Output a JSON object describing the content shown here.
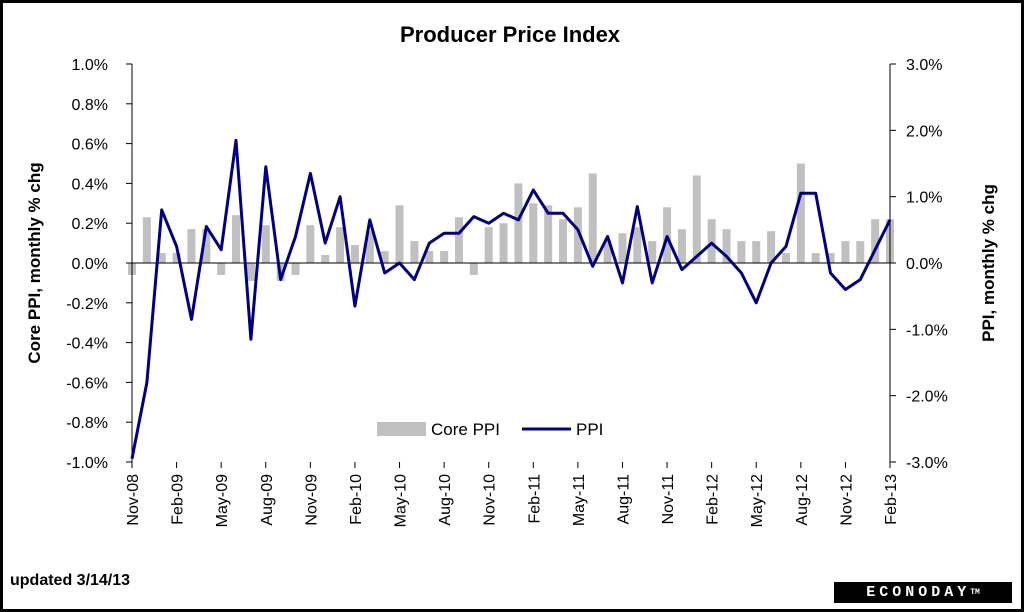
{
  "chart_data": {
    "type": "bar",
    "title": "Producer Price Index",
    "ylabel_left": "Core PPI, monthly % chg",
    "ylabel_right": "PPI, monthly % chg",
    "ylim_left": [
      -1.0,
      1.0
    ],
    "ylim_right": [
      -3.0,
      3.0
    ],
    "left_ticks": [
      "1.0%",
      "0.8%",
      "0.6%",
      "0.4%",
      "0.2%",
      "0.0%",
      "-0.2%",
      "-0.4%",
      "-0.6%",
      "-0.8%",
      "-1.0%"
    ],
    "right_ticks": [
      "3.0%",
      "2.0%",
      "1.0%",
      "0.0%",
      "-1.0%",
      "-2.0%",
      "-3.0%"
    ],
    "x_labels": [
      "Nov-08",
      "Feb-09",
      "May-09",
      "Aug-09",
      "Nov-09",
      "Feb-10",
      "May-10",
      "Aug-10",
      "Nov-10",
      "Feb-11",
      "May-11",
      "Aug-11",
      "Nov-11",
      "Feb-12",
      "May-12",
      "Aug-12",
      "Nov-12",
      "Feb-13"
    ],
    "categories": [
      "Nov-08",
      "Dec-08",
      "Jan-09",
      "Feb-09",
      "Mar-09",
      "Apr-09",
      "May-09",
      "Jun-09",
      "Jul-09",
      "Aug-09",
      "Sep-09",
      "Oct-09",
      "Nov-09",
      "Dec-09",
      "Jan-10",
      "Feb-10",
      "Mar-10",
      "Apr-10",
      "May-10",
      "Jun-10",
      "Jul-10",
      "Aug-10",
      "Sep-10",
      "Oct-10",
      "Nov-10",
      "Dec-10",
      "Jan-11",
      "Feb-11",
      "Mar-11",
      "Apr-11",
      "May-11",
      "Jun-11",
      "Jul-11",
      "Aug-11",
      "Sep-11",
      "Oct-11",
      "Nov-11",
      "Dec-11",
      "Jan-12",
      "Feb-12",
      "Mar-12",
      "Apr-12",
      "May-12",
      "Jun-12",
      "Jul-12",
      "Aug-12",
      "Sep-12",
      "Oct-12",
      "Nov-12",
      "Dec-12",
      "Jan-13",
      "Feb-13"
    ],
    "series": [
      {
        "name": "Core PPI",
        "type": "bar",
        "axis": "left",
        "color": "#c0c0c0",
        "values": [
          -0.06,
          0.23,
          0.05,
          0.05,
          0.17,
          0.17,
          -0.06,
          0.24,
          -0.09,
          0.19,
          -0.09,
          -0.06,
          0.19,
          0.04,
          0.18,
          0.09,
          0.16,
          0.06,
          0.29,
          0.11,
          0.06,
          0.06,
          0.23,
          -0.06,
          0.18,
          0.2,
          0.4,
          0.3,
          0.29,
          0.22,
          0.28,
          0.45,
          0.11,
          0.15,
          0.18,
          0.11,
          0.28,
          0.17,
          0.44,
          0.22,
          0.17,
          0.11,
          0.11,
          0.16,
          0.05,
          0.5,
          0.05,
          0.05,
          0.11,
          0.11,
          0.22,
          0.22
        ]
      },
      {
        "name": "PPI",
        "type": "line",
        "axis": "right",
        "color": "#000080",
        "values": [
          -2.95,
          -1.8,
          0.8,
          0.25,
          -0.85,
          0.55,
          0.2,
          1.85,
          -1.15,
          1.45,
          -0.25,
          0.4,
          1.35,
          0.3,
          1.0,
          -0.65,
          0.65,
          -0.15,
          0.0,
          -0.25,
          0.3,
          0.45,
          0.45,
          0.7,
          0.6,
          0.75,
          0.65,
          1.1,
          0.75,
          0.75,
          0.5,
          -0.05,
          0.4,
          -0.3,
          0.85,
          -0.3,
          0.4,
          -0.1,
          0.1,
          0.3,
          0.1,
          -0.15,
          -0.6,
          0.0,
          0.25,
          1.05,
          1.05,
          -0.15,
          -0.4,
          -0.25,
          0.2,
          0.65
        ]
      }
    ],
    "legend_position": "bottom-center",
    "grid": false
  },
  "footer": {
    "updated": "updated 3/14/13",
    "brand": "ECONODAY",
    "brand_tm": "TM"
  }
}
